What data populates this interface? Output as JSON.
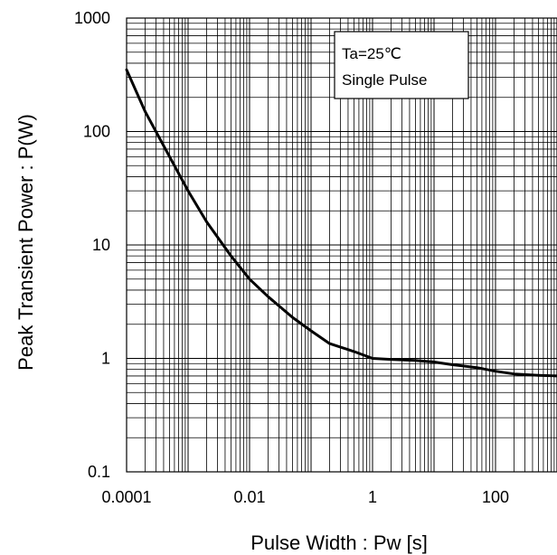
{
  "chart_data": {
    "type": "line",
    "xscale": "log",
    "yscale": "log",
    "xlim": [
      0.0001,
      1000
    ],
    "ylim": [
      0.1,
      1000
    ],
    "grid": "major-and-minor",
    "xlabel": "Pulse Width : Pw [s]",
    "ylabel": "Peak Transient Power : P(W)",
    "x_ticks": [
      "0.0001",
      "0.01",
      "1",
      "100"
    ],
    "y_ticks": [
      "0.1",
      "1",
      "10",
      "100",
      "1000"
    ],
    "annotation": [
      "Ta=25℃",
      "Single Pulse"
    ],
    "series": [
      {
        "x": [
          0.0001,
          0.0002,
          0.0005,
          0.001,
          0.002,
          0.005,
          0.01,
          0.02,
          0.05,
          0.1,
          0.2,
          0.5,
          1,
          2,
          5,
          10,
          20,
          50,
          100,
          200,
          500,
          1000
        ],
        "y": [
          350,
          150,
          60,
          30,
          16,
          8,
          5,
          3.5,
          2.3,
          1.75,
          1.35,
          1.15,
          1.0,
          0.98,
          0.96,
          0.93,
          0.88,
          0.83,
          0.77,
          0.73,
          0.71,
          0.7
        ]
      }
    ]
  }
}
